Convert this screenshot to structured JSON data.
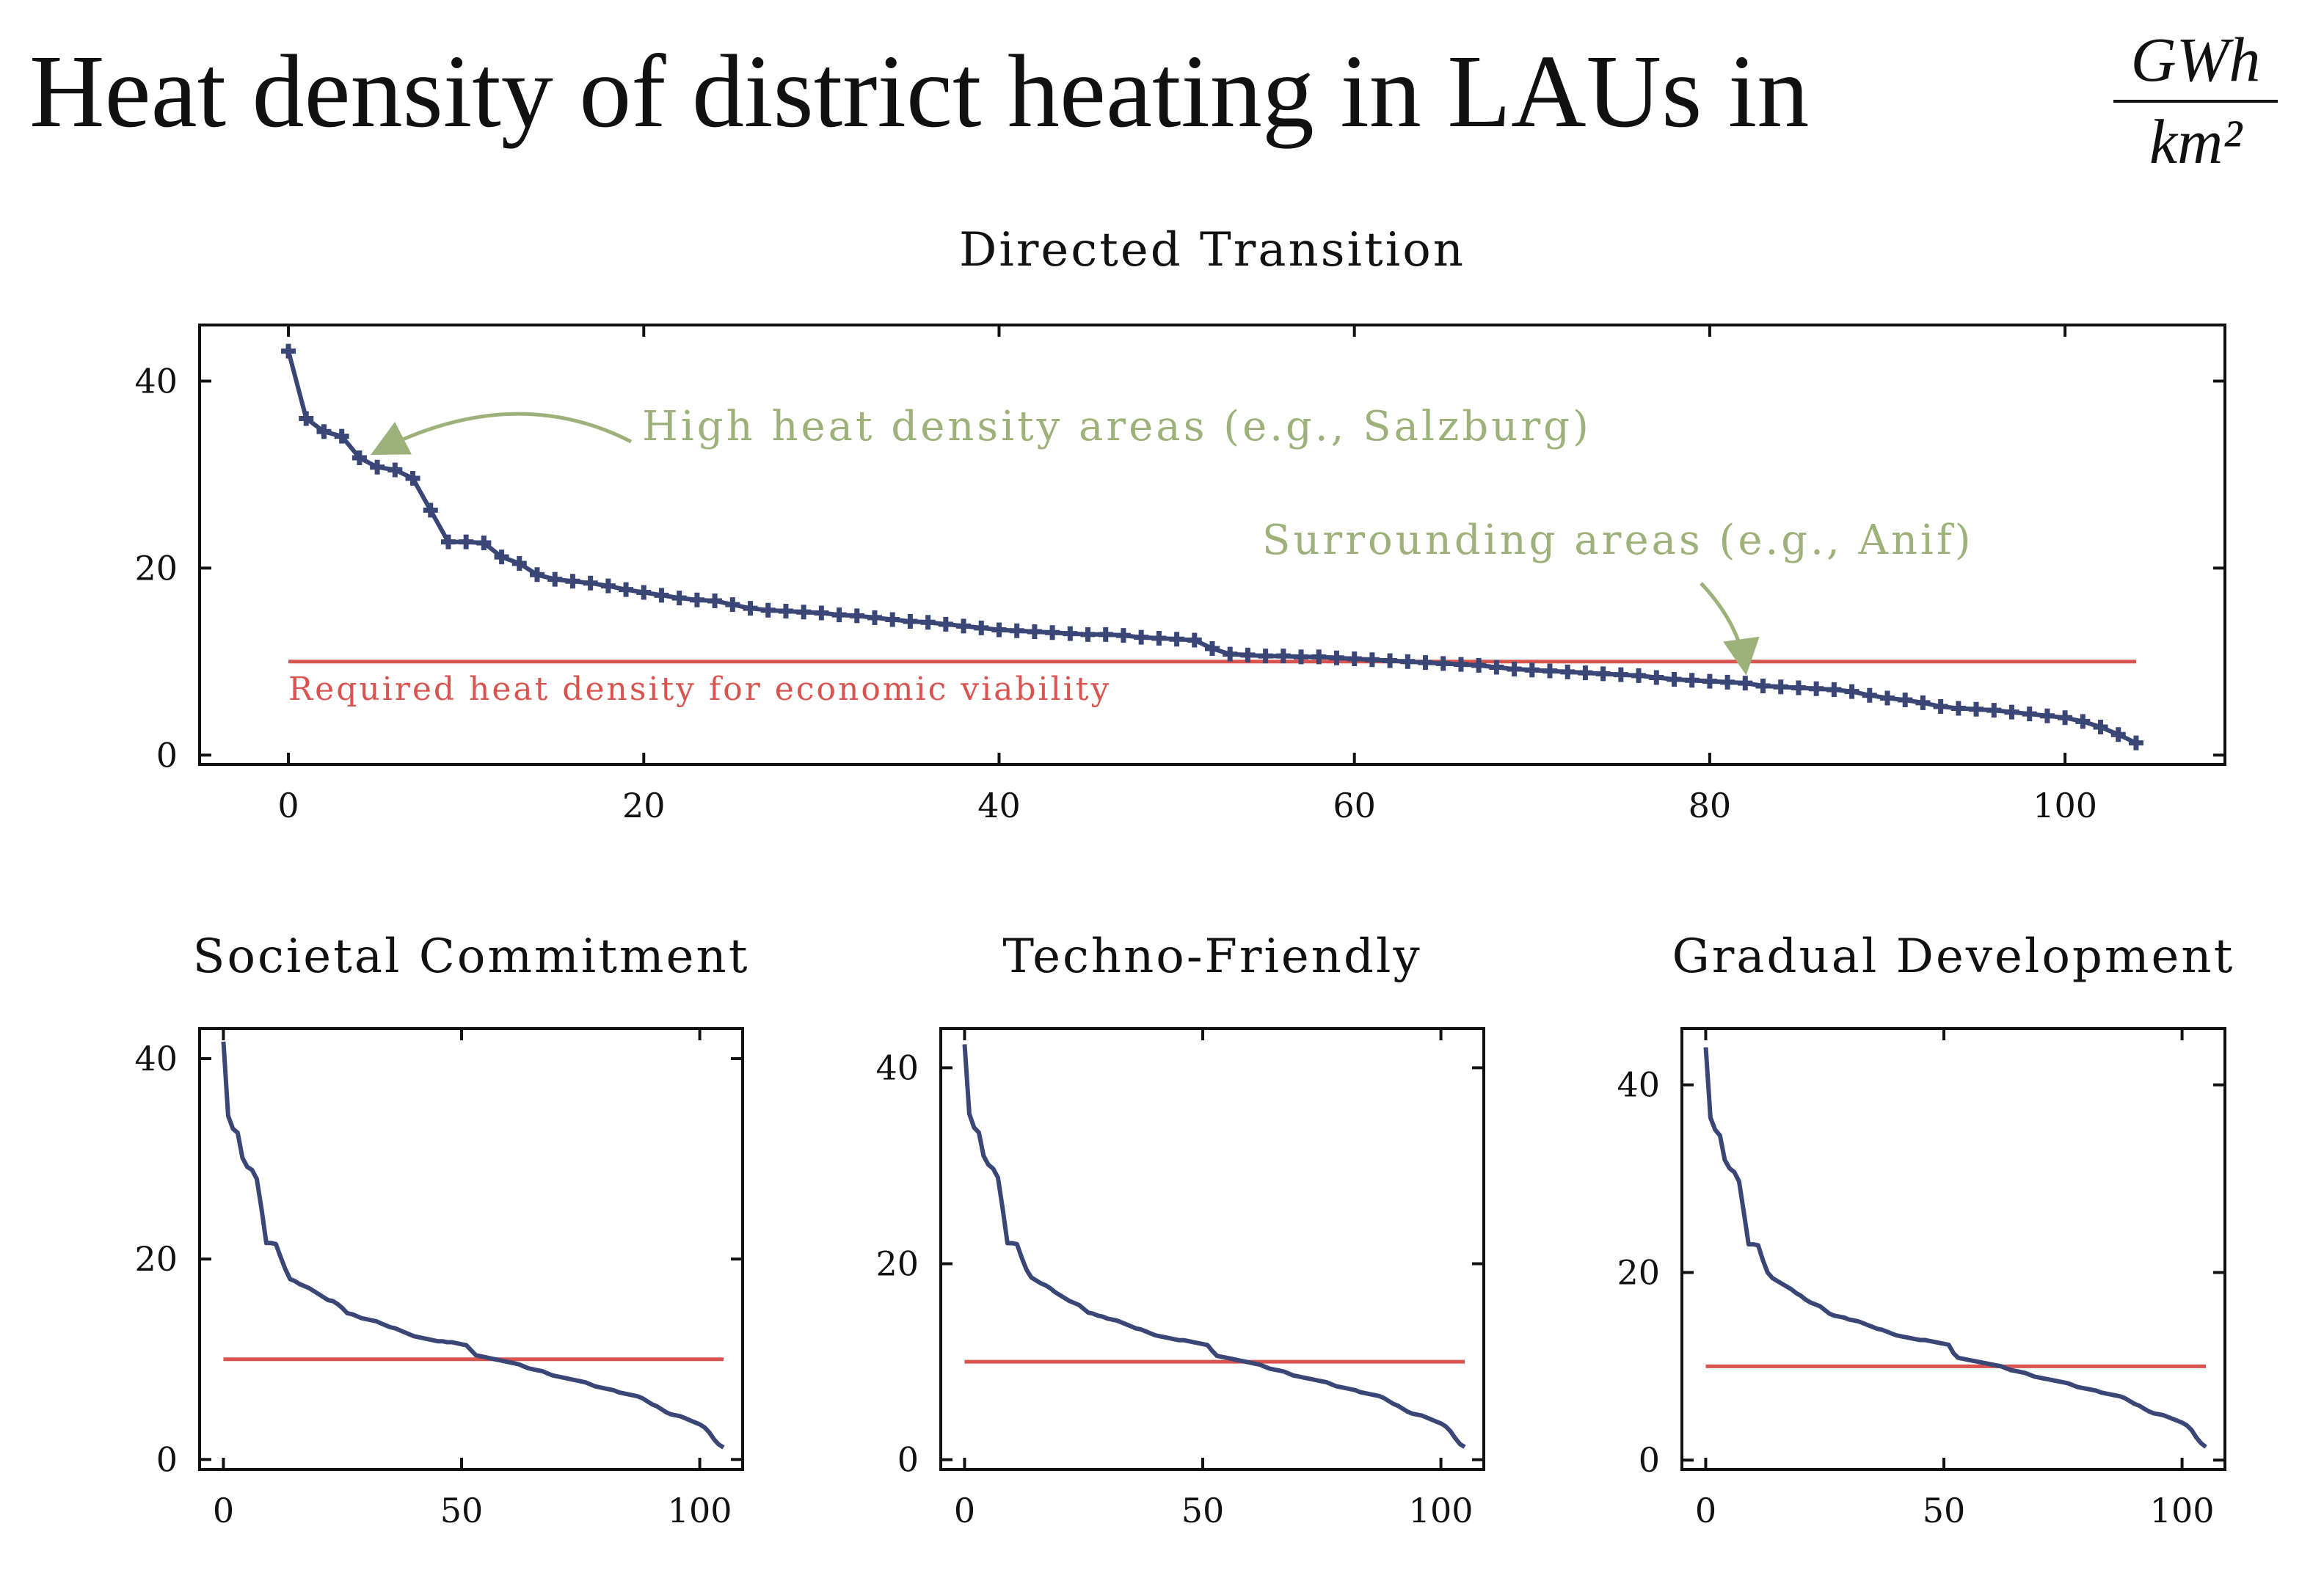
{
  "figure": {
    "title": "Heat density of district heating in LAUs in",
    "title_unit_numerator": "GWh",
    "title_unit_denominator": "km²"
  },
  "colors": {
    "series": "#3a4776",
    "threshold": "#d9534f",
    "annotation": "#9db27a"
  },
  "chart_data": [
    {
      "type": "line",
      "title": "Directed Transition",
      "markers": true,
      "xlim": [
        -5,
        109
      ],
      "ylim": [
        -1,
        46
      ],
      "xticks": [
        0,
        20,
        40,
        60,
        80,
        100
      ],
      "yticks": [
        0,
        20,
        40
      ],
      "threshold": {
        "y": 10,
        "x": [
          0,
          104
        ],
        "label": "Required heat density for economic viability"
      },
      "annotations": [
        {
          "text": "High heat density areas (e.g., Salzburg)",
          "point": [
            4.5,
            32
          ]
        },
        {
          "text": "Surrounding areas (e.g., Anif)",
          "point": [
            82,
            8.2
          ]
        }
      ],
      "series": [
        {
          "x": [
            0,
            1,
            2,
            3,
            4,
            5,
            6,
            7,
            8,
            9,
            10,
            11,
            12,
            13,
            14,
            15,
            16,
            17,
            18,
            19,
            20,
            21,
            22,
            23,
            24,
            25,
            26,
            27,
            28,
            29,
            30,
            31,
            32,
            33,
            34,
            35,
            36,
            37,
            38,
            39,
            40,
            41,
            42,
            43,
            44,
            45,
            46,
            47,
            48,
            49,
            50,
            51,
            52,
            53,
            54,
            55,
            56,
            57,
            58,
            59,
            60,
            61,
            62,
            63,
            64,
            65,
            66,
            67,
            68,
            69,
            70,
            71,
            72,
            73,
            74,
            75,
            76,
            77,
            78,
            79,
            80,
            81,
            82,
            83,
            84,
            85,
            86,
            87,
            88,
            89,
            90,
            91,
            92,
            93,
            94,
            95,
            96,
            97,
            98,
            99,
            100,
            101,
            102,
            103,
            104
          ],
          "values": [
            43.2,
            36.0,
            34.6,
            34.1,
            31.8,
            30.8,
            30.5,
            29.6,
            26.2,
            22.8,
            22.8,
            22.7,
            21.2,
            20.5,
            19.3,
            18.8,
            18.6,
            18.4,
            18.1,
            17.7,
            17.4,
            17.1,
            16.8,
            16.6,
            16.5,
            16.1,
            15.7,
            15.5,
            15.4,
            15.3,
            15.2,
            15.0,
            14.9,
            14.7,
            14.5,
            14.3,
            14.2,
            14.0,
            13.8,
            13.6,
            13.4,
            13.3,
            13.2,
            13.1,
            13.0,
            12.9,
            12.9,
            12.8,
            12.6,
            12.5,
            12.4,
            12.3,
            11.4,
            10.8,
            10.7,
            10.6,
            10.6,
            10.5,
            10.5,
            10.4,
            10.3,
            10.2,
            10.1,
            10.0,
            9.9,
            9.8,
            9.7,
            9.6,
            9.4,
            9.2,
            9.1,
            9.0,
            8.9,
            8.8,
            8.7,
            8.6,
            8.5,
            8.3,
            8.1,
            8.0,
            7.9,
            7.8,
            7.7,
            7.4,
            7.3,
            7.2,
            7.1,
            7.0,
            6.8,
            6.4,
            6.1,
            5.9,
            5.6,
            5.2,
            5.0,
            4.9,
            4.8,
            4.6,
            4.4,
            4.2,
            4.0,
            3.6,
            3.0,
            2.2,
            1.3
          ]
        }
      ]
    },
    {
      "type": "line",
      "title": "Societal Commitment",
      "xlim": [
        -5,
        109
      ],
      "ylim": [
        -1,
        43
      ],
      "xticks": [
        0,
        50,
        100
      ],
      "yticks": [
        0,
        20,
        40
      ],
      "threshold": {
        "y": 10,
        "x": [
          0,
          105
        ]
      },
      "series": [
        {
          "x": [
            0,
            1,
            2,
            3,
            4,
            5,
            6,
            7,
            8,
            9,
            10,
            11,
            12,
            13,
            14,
            15,
            16,
            17,
            18,
            19,
            20,
            21,
            22,
            23,
            24,
            25,
            26,
            27,
            28,
            29,
            30,
            31,
            32,
            33,
            34,
            35,
            36,
            37,
            38,
            39,
            40,
            41,
            42,
            43,
            44,
            45,
            46,
            47,
            48,
            49,
            50,
            51,
            52,
            53,
            54,
            55,
            56,
            57,
            58,
            59,
            60,
            61,
            62,
            63,
            64,
            65,
            66,
            67,
            68,
            69,
            70,
            71,
            72,
            73,
            74,
            75,
            76,
            77,
            78,
            79,
            80,
            81,
            82,
            83,
            84,
            85,
            86,
            87,
            88,
            89,
            90,
            91,
            92,
            93,
            94,
            95,
            96,
            97,
            98,
            99,
            100,
            101,
            102,
            103,
            104,
            105
          ],
          "values": [
            41.7,
            34.3,
            33.0,
            32.6,
            30.1,
            29.2,
            28.9,
            28.0,
            25.0,
            21.6,
            21.6,
            21.5,
            20.2,
            19.0,
            18.0,
            17.8,
            17.5,
            17.3,
            17.1,
            16.8,
            16.5,
            16.2,
            15.9,
            15.8,
            15.5,
            15.1,
            14.6,
            14.5,
            14.3,
            14.1,
            14.0,
            13.9,
            13.8,
            13.6,
            13.4,
            13.2,
            13.1,
            12.9,
            12.7,
            12.5,
            12.3,
            12.2,
            12.1,
            12.0,
            11.9,
            11.8,
            11.8,
            11.7,
            11.7,
            11.6,
            11.5,
            11.4,
            10.9,
            10.4,
            10.3,
            10.2,
            10.1,
            10.0,
            9.9,
            9.8,
            9.7,
            9.6,
            9.5,
            9.3,
            9.1,
            9.0,
            8.9,
            8.8,
            8.6,
            8.4,
            8.3,
            8.2,
            8.1,
            8.0,
            7.9,
            7.8,
            7.7,
            7.5,
            7.3,
            7.2,
            7.1,
            7.0,
            6.9,
            6.7,
            6.6,
            6.5,
            6.4,
            6.3,
            6.1,
            5.8,
            5.5,
            5.3,
            5.0,
            4.7,
            4.5,
            4.4,
            4.3,
            4.1,
            3.9,
            3.7,
            3.5,
            3.2,
            2.7,
            2.0,
            1.5,
            1.2
          ]
        }
      ]
    },
    {
      "type": "line",
      "title": "Techno-Friendly",
      "xlim": [
        -5,
        109
      ],
      "ylim": [
        -1,
        44
      ],
      "xticks": [
        0,
        50,
        100
      ],
      "yticks": [
        0,
        20,
        40
      ],
      "threshold": {
        "y": 10,
        "x": [
          0,
          105
        ]
      },
      "series": [
        {
          "x": [
            0,
            1,
            2,
            3,
            4,
            5,
            6,
            7,
            8,
            9,
            10,
            11,
            12,
            13,
            14,
            15,
            16,
            17,
            18,
            19,
            20,
            21,
            22,
            23,
            24,
            25,
            26,
            27,
            28,
            29,
            30,
            31,
            32,
            33,
            34,
            35,
            36,
            37,
            38,
            39,
            40,
            41,
            42,
            43,
            44,
            45,
            46,
            47,
            48,
            49,
            50,
            51,
            52,
            53,
            54,
            55,
            56,
            57,
            58,
            59,
            60,
            61,
            62,
            63,
            64,
            65,
            66,
            67,
            68,
            69,
            70,
            71,
            72,
            73,
            74,
            75,
            76,
            77,
            78,
            79,
            80,
            81,
            82,
            83,
            84,
            85,
            86,
            87,
            88,
            89,
            90,
            91,
            92,
            93,
            94,
            95,
            96,
            97,
            98,
            99,
            100,
            101,
            102,
            103,
            104,
            105
          ],
          "values": [
            42.4,
            35.3,
            33.9,
            33.4,
            31.0,
            30.1,
            29.7,
            28.8,
            25.6,
            22.1,
            22.1,
            22.0,
            20.6,
            19.4,
            18.6,
            18.3,
            18.0,
            17.8,
            17.5,
            17.1,
            16.8,
            16.5,
            16.2,
            16.0,
            15.8,
            15.4,
            15.0,
            14.9,
            14.7,
            14.6,
            14.4,
            14.3,
            14.2,
            14.0,
            13.8,
            13.6,
            13.4,
            13.3,
            13.1,
            12.9,
            12.7,
            12.6,
            12.5,
            12.4,
            12.3,
            12.2,
            12.2,
            12.1,
            12.0,
            11.9,
            11.8,
            11.7,
            11.1,
            10.6,
            10.5,
            10.4,
            10.3,
            10.2,
            10.1,
            10.0,
            9.9,
            9.8,
            9.7,
            9.5,
            9.3,
            9.2,
            9.1,
            9.0,
            8.8,
            8.6,
            8.5,
            8.4,
            8.3,
            8.2,
            8.1,
            8.0,
            7.9,
            7.7,
            7.5,
            7.4,
            7.3,
            7.2,
            7.1,
            6.9,
            6.8,
            6.7,
            6.6,
            6.5,
            6.3,
            6.0,
            5.7,
            5.5,
            5.2,
            4.9,
            4.7,
            4.6,
            4.5,
            4.3,
            4.1,
            3.9,
            3.7,
            3.4,
            2.9,
            2.2,
            1.6,
            1.3
          ]
        }
      ]
    },
    {
      "type": "line",
      "title": "Gradual Development",
      "xlim": [
        -5,
        109
      ],
      "ylim": [
        -1,
        46
      ],
      "xticks": [
        0,
        50,
        100
      ],
      "yticks": [
        0,
        20,
        40
      ],
      "threshold": {
        "y": 10,
        "x": [
          0,
          105
        ]
      },
      "series": [
        {
          "x": [
            0,
            1,
            2,
            3,
            4,
            5,
            6,
            7,
            8,
            9,
            10,
            11,
            12,
            13,
            14,
            15,
            16,
            17,
            18,
            19,
            20,
            21,
            22,
            23,
            24,
            25,
            26,
            27,
            28,
            29,
            30,
            31,
            32,
            33,
            34,
            35,
            36,
            37,
            38,
            39,
            40,
            41,
            42,
            43,
            44,
            45,
            46,
            47,
            48,
            49,
            50,
            51,
            52,
            53,
            54,
            55,
            56,
            57,
            58,
            59,
            60,
            61,
            62,
            63,
            64,
            65,
            66,
            67,
            68,
            69,
            70,
            71,
            72,
            73,
            74,
            75,
            76,
            77,
            78,
            79,
            80,
            81,
            82,
            83,
            84,
            85,
            86,
            87,
            88,
            89,
            90,
            91,
            92,
            93,
            94,
            95,
            96,
            97,
            98,
            99,
            100,
            101,
            102,
            103,
            104,
            105
          ],
          "values": [
            44.0,
            36.5,
            35.2,
            34.6,
            32.0,
            31.1,
            30.7,
            29.7,
            26.4,
            23.0,
            23.0,
            22.9,
            21.3,
            20.0,
            19.4,
            19.1,
            18.8,
            18.5,
            18.2,
            17.8,
            17.5,
            17.1,
            16.8,
            16.6,
            16.4,
            16.0,
            15.6,
            15.4,
            15.3,
            15.2,
            15.0,
            14.9,
            14.8,
            14.6,
            14.4,
            14.2,
            14.0,
            13.9,
            13.7,
            13.5,
            13.3,
            13.2,
            13.1,
            13.0,
            12.9,
            12.8,
            12.8,
            12.7,
            12.6,
            12.5,
            12.4,
            12.3,
            11.4,
            10.9,
            10.8,
            10.7,
            10.6,
            10.5,
            10.4,
            10.3,
            10.2,
            10.1,
            10.0,
            9.8,
            9.6,
            9.5,
            9.4,
            9.3,
            9.1,
            8.9,
            8.8,
            8.7,
            8.6,
            8.5,
            8.4,
            8.3,
            8.2,
            8.0,
            7.8,
            7.7,
            7.6,
            7.5,
            7.4,
            7.2,
            7.1,
            7.0,
            6.9,
            6.8,
            6.6,
            6.3,
            6.0,
            5.8,
            5.5,
            5.2,
            5.0,
            4.9,
            4.8,
            4.6,
            4.4,
            4.2,
            4.0,
            3.7,
            3.2,
            2.4,
            1.8,
            1.4
          ]
        }
      ]
    }
  ]
}
